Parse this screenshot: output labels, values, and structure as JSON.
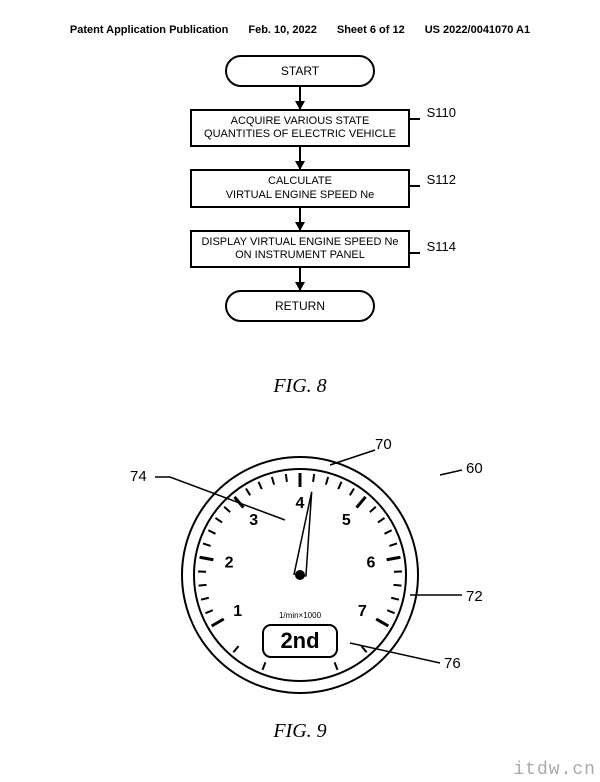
{
  "header": {
    "publication": "Patent Application Publication",
    "date": "Feb. 10, 2022",
    "sheet": "Sheet 6 of 12",
    "pubno": "US 2022/0041070 A1"
  },
  "flowchart": {
    "start": "START",
    "step1": {
      "label": "S110",
      "line1": "ACQUIRE VARIOUS STATE",
      "line2": "QUANTITIES OF ELECTRIC VEHICLE"
    },
    "step2": {
      "label": "S112",
      "line1": "CALCULATE",
      "line2": "VIRTUAL ENGINE SPEED Ne"
    },
    "step3": {
      "label": "S114",
      "line1": "DISPLAY VIRTUAL ENGINE SPEED Ne",
      "line2": "ON INSTRUMENT PANEL"
    },
    "return": "RETURN"
  },
  "fig8_caption": "FIG. 8",
  "fig9_caption": "FIG. 9",
  "gauge": {
    "type": "tachometer",
    "callouts": {
      "c60": "60",
      "c70": "70",
      "c72": "72",
      "c74": "74",
      "c76": "76"
    },
    "unit_label": "1/min×1000",
    "gear": "2nd",
    "ticks": [
      "1",
      "2",
      "3",
      "4",
      "5",
      "6",
      "7"
    ],
    "needle_value": 4.2,
    "outer_stroke": "#000000",
    "bg": "#ffffff",
    "rim_width": 10,
    "start_angle_deg": 210,
    "end_angle_deg": -30,
    "major_tick_len": 14,
    "minor_tick_len": 8,
    "tick_fontsize": 16,
    "unit_fontsize": 8,
    "gear_fontsize": 22
  },
  "colors": {
    "ink": "#000000",
    "paper": "#ffffff",
    "watermark": "#aaaaaa"
  },
  "watermark": "itdw.cn"
}
